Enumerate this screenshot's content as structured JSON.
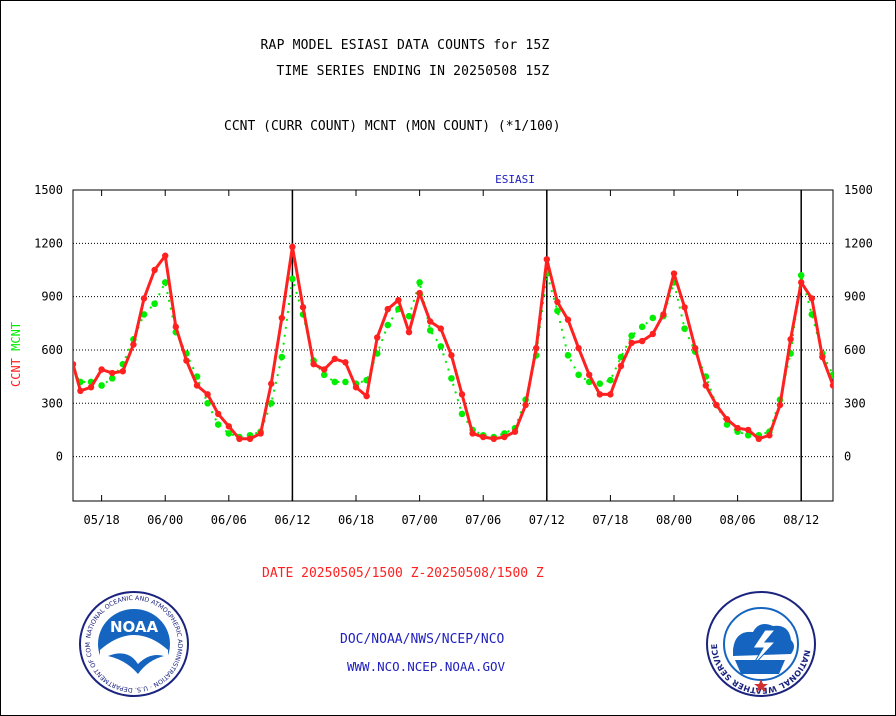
{
  "titles": {
    "line1": "RAP MODEL ESIASI DATA COUNTS for 15Z",
    "line2": "TIME SERIES ENDING IN 20250508 15Z",
    "subtitle": "CCNT (CURR COUNT) MCNT (MON COUNT) (*1/100)",
    "date_range": "DATE 20250505/1500 Z-20250508/1500 Z",
    "footer_org": "DOC/NOAA/NWS/NCEP/NCO",
    "footer_url": "WWW.NCO.NCEP.NOAA.GOV"
  },
  "logos": {
    "noaa_text": "NOAA",
    "noaa_ring": "NATIONAL OCEANIC AND ATMOSPHERIC ADMINISTRATION · U.S. DEPARTMENT OF COMMERCE",
    "nws_ring": "NATIONAL WEATHER SERVICE"
  },
  "colors": {
    "ccnt": "#ff2020",
    "mcnt": "#00ee00",
    "title_blue": "#2020c0",
    "text_red": "#ff2020"
  },
  "chart_data": {
    "type": "line",
    "title": "ESIASI",
    "ylabel_left": [
      "CCNT",
      "MCNT"
    ],
    "ylim": [
      -250,
      1500
    ],
    "yticks": [
      0,
      300,
      600,
      900,
      1200,
      1500
    ],
    "xlim": [
      -2.7,
      69
    ],
    "xticks": [
      {
        "x": 0,
        "label": "05/18"
      },
      {
        "x": 6,
        "label": "06/00"
      },
      {
        "x": 12,
        "label": "06/06"
      },
      {
        "x": 18,
        "label": "06/12"
      },
      {
        "x": 24,
        "label": "06/18"
      },
      {
        "x": 30,
        "label": "07/00"
      },
      {
        "x": 36,
        "label": "07/06"
      },
      {
        "x": 42,
        "label": "07/12"
      },
      {
        "x": 48,
        "label": "07/18"
      },
      {
        "x": 54,
        "label": "08/00"
      },
      {
        "x": 60,
        "label": "08/06"
      },
      {
        "x": 66,
        "label": "08/12"
      }
    ],
    "day_markers": [
      18,
      42,
      66
    ],
    "grid": "horizontal dotted",
    "series": [
      {
        "name": "CCNT",
        "style": "solid-with-dots",
        "x": [
          -2.7,
          -2,
          -1,
          0,
          1,
          2,
          3,
          4,
          5,
          6,
          7,
          8,
          9,
          10,
          11,
          12,
          13,
          14,
          15,
          16,
          17,
          18,
          19,
          20,
          21,
          22,
          23,
          24,
          25,
          26,
          27,
          28,
          29,
          30,
          31,
          32,
          33,
          34,
          35,
          36,
          37,
          38,
          39,
          40,
          41,
          42,
          43,
          44,
          45,
          46,
          47,
          48,
          49,
          50,
          51,
          52,
          53,
          54,
          55,
          56,
          57,
          58,
          59,
          60,
          61,
          62,
          63,
          64,
          65,
          66,
          67,
          68,
          69
        ],
        "values": [
          520,
          370,
          390,
          490,
          470,
          480,
          630,
          890,
          1050,
          1130,
          730,
          540,
          400,
          350,
          240,
          170,
          100,
          100,
          130,
          410,
          780,
          1180,
          840,
          520,
          490,
          550,
          530,
          390,
          340,
          670,
          830,
          880,
          700,
          920,
          760,
          720,
          570,
          350,
          130,
          110,
          100,
          110,
          140,
          290,
          610,
          1110,
          870,
          770,
          610,
          460,
          350,
          350,
          510,
          640,
          650,
          690,
          800,
          1030,
          840,
          610,
          400,
          290,
          210,
          160,
          150,
          100,
          120,
          290,
          660,
          980,
          890,
          560,
          400
        ]
      },
      {
        "name": "MCNT",
        "style": "dotted",
        "x": [
          -2.7,
          -2,
          -1,
          0,
          1,
          2,
          3,
          4,
          5,
          6,
          7,
          8,
          9,
          10,
          11,
          12,
          13,
          14,
          15,
          16,
          17,
          18,
          19,
          20,
          21,
          22,
          23,
          24,
          25,
          26,
          27,
          28,
          29,
          30,
          31,
          32,
          33,
          34,
          35,
          36,
          37,
          38,
          39,
          40,
          41,
          42,
          43,
          44,
          45,
          46,
          47,
          48,
          49,
          50,
          51,
          52,
          53,
          54,
          55,
          56,
          57,
          58,
          59,
          60,
          61,
          62,
          63,
          64,
          65,
          66,
          67,
          68,
          69
        ],
        "values": [
          480,
          420,
          420,
          400,
          440,
          520,
          660,
          800,
          860,
          980,
          700,
          580,
          450,
          300,
          180,
          130,
          110,
          120,
          140,
          300,
          560,
          1000,
          800,
          540,
          460,
          420,
          420,
          410,
          430,
          580,
          740,
          830,
          790,
          980,
          710,
          620,
          440,
          240,
          150,
          120,
          110,
          130,
          160,
          320,
          570,
          1030,
          820,
          570,
          460,
          420,
          410,
          430,
          560,
          680,
          730,
          780,
          790,
          980,
          720,
          590,
          450,
          290,
          180,
          140,
          120,
          120,
          140,
          320,
          580,
          1020,
          800,
          580,
          460
        ]
      }
    ]
  }
}
